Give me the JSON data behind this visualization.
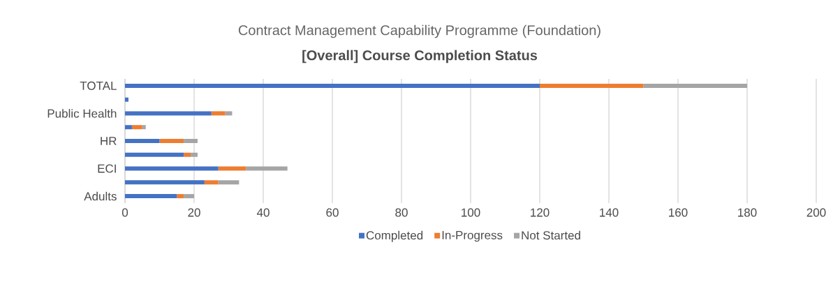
{
  "chart_data": {
    "type": "bar",
    "orientation": "horizontal",
    "stacked": true,
    "title": "Contract Management Capability Programme (Foundation)",
    "subtitle": "[Overall] Course Completion Status",
    "categories": [
      "TOTAL",
      null,
      "Public Health",
      null,
      "HR",
      null,
      "ECI",
      null,
      "Adults"
    ],
    "series": [
      {
        "name": "Completed",
        "color": "#4472c4",
        "values": [
          120,
          1,
          25,
          2,
          10,
          17,
          27,
          23,
          15
        ]
      },
      {
        "name": "In-Progress",
        "color": "#ed7d31",
        "values": [
          30,
          0,
          4,
          3,
          7,
          2,
          8,
          4,
          2
        ]
      },
      {
        "name": "Not Started",
        "color": "#a5a5a5",
        "values": [
          30,
          0,
          2,
          1,
          4,
          2,
          12,
          6,
          3
        ]
      }
    ],
    "xlim": [
      0,
      200
    ],
    "xticks": [
      0,
      20,
      40,
      60,
      80,
      100,
      120,
      140,
      160,
      180,
      200
    ],
    "grid": "x",
    "legend": "bottom"
  }
}
